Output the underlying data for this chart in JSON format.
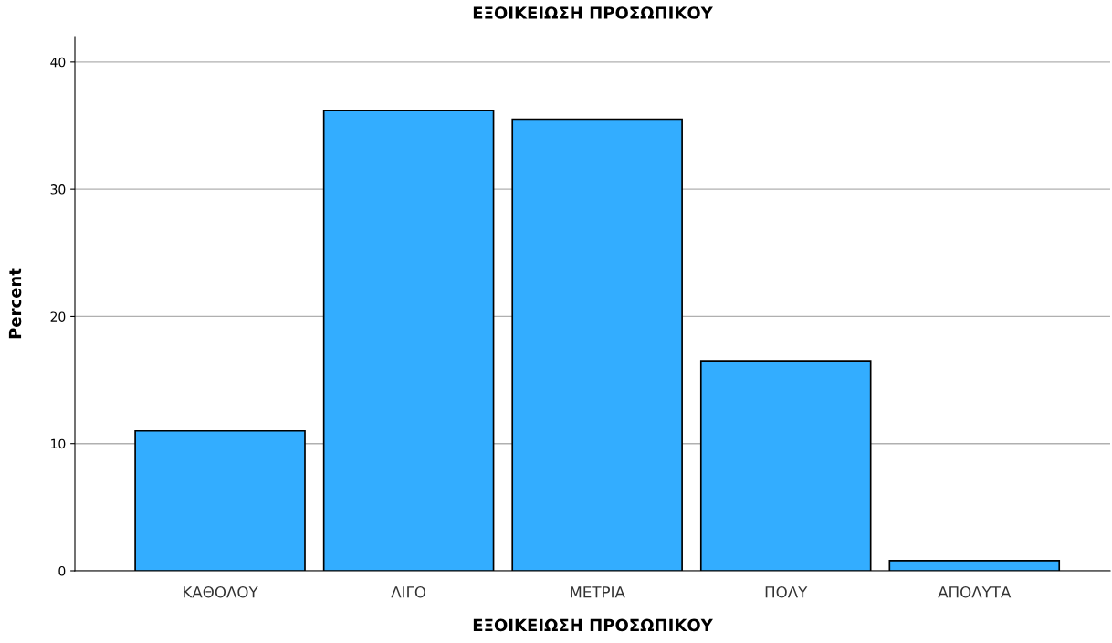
{
  "chart_data": {
    "type": "bar",
    "title": "ΕΞΟΙΚΕΙΩΣΗ ΠΡΟΣΩΠΙΚΟΥ",
    "xlabel": "ΕΞΟΙΚΕΙΩΣΗ ΠΡΟΣΩΠΙΚΟΥ",
    "ylabel": "Percent",
    "categories": [
      "ΚΑΘΟΛΟΥ",
      "ΛΙΓΟ",
      "ΜΕΤΡΙΑ",
      "ΠΟΛΥ",
      "ΑΠΟΛΥΤΑ"
    ],
    "values": [
      11.0,
      36.2,
      35.5,
      16.5,
      0.8
    ],
    "color": "#33adff",
    "ylim": [
      0,
      42
    ],
    "yticks": [
      0,
      10,
      20,
      30,
      40
    ],
    "grid": "y"
  }
}
